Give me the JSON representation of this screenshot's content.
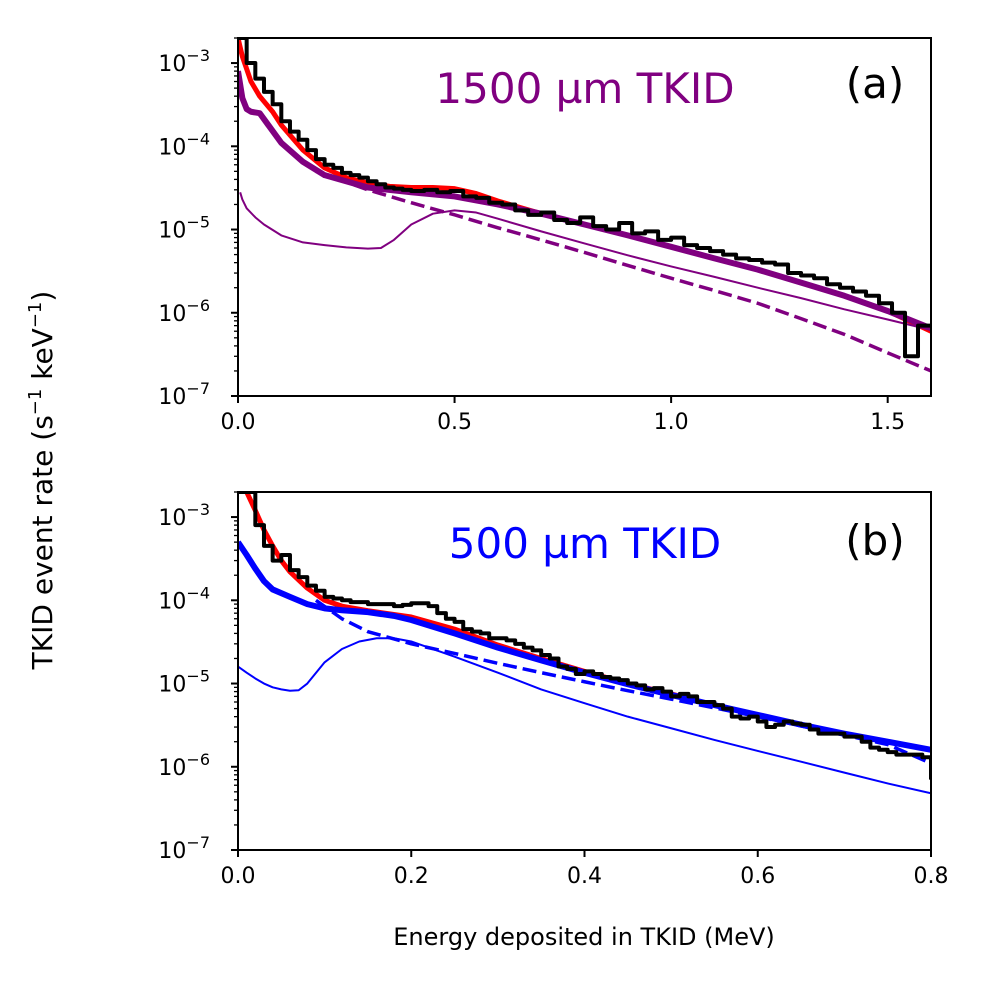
{
  "ylabel": "TKID event rate (s⁻¹ keV⁻¹)",
  "ylabel_text": "TKID event rate (s",
  "ylabel_sup1": "−1",
  "ylabel_mid": " keV",
  "ylabel_sup2": "−1",
  "ylabel_end": ")",
  "ytick_base": "10",
  "chart_data": [
    {
      "type": "line",
      "panel": "a",
      "panel_label": "(a)",
      "annotation": "1500 µm TKID",
      "annotation_color": "#800080",
      "xlabel": "",
      "ylabel": "TKID event rate (s⁻¹ keV⁻¹)",
      "xlim": [
        0,
        1.6
      ],
      "ylim": [
        1e-07,
        0.002
      ],
      "yscale": "log",
      "xticks": [
        0,
        0.5,
        1.0,
        1.5
      ],
      "xticklabels": [
        "0.0",
        "0.5",
        "1.0",
        "1.5"
      ],
      "yticks": [
        1e-07,
        1e-06,
        1e-05,
        0.0001,
        0.001
      ],
      "ytick_exps": [
        "−7",
        "−6",
        "−5",
        "−4",
        "−3"
      ],
      "series": [
        {
          "name": "total model",
          "color": "#ff0000",
          "width": 5,
          "style": "solid",
          "x": [
            0.0,
            0.01,
            0.03,
            0.05,
            0.08,
            0.1,
            0.15,
            0.2,
            0.25,
            0.3,
            0.35,
            0.4,
            0.45,
            0.5,
            0.55,
            0.6,
            0.7,
            0.8,
            0.9,
            1.0,
            1.1,
            1.2,
            1.3,
            1.4,
            1.5,
            1.6
          ],
          "y": [
            0.002,
            0.0012,
            0.0006,
            0.0004,
            0.00026,
            0.00018,
            9e-05,
            5.5e-05,
            4.2e-05,
            3.6e-05,
            3.3e-05,
            3.2e-05,
            3.2e-05,
            3.1e-05,
            2.7e-05,
            2.2e-05,
            1.55e-05,
            1.15e-05,
            8.5e-06,
            6.2e-06,
            4.5e-06,
            3.3e-06,
            2.3e-06,
            1.6e-06,
            1.05e-06,
            6e-07
          ]
        },
        {
          "name": "data histogram",
          "color": "#000000",
          "width": 4,
          "style": "step",
          "edges": [
            0.0,
            0.02,
            0.04,
            0.06,
            0.08,
            0.1,
            0.12,
            0.14,
            0.16,
            0.18,
            0.2,
            0.22,
            0.24,
            0.26,
            0.28,
            0.3,
            0.32,
            0.34,
            0.36,
            0.38,
            0.4,
            0.43,
            0.46,
            0.49,
            0.52,
            0.55,
            0.58,
            0.61,
            0.64,
            0.67,
            0.7,
            0.73,
            0.76,
            0.79,
            0.82,
            0.85,
            0.88,
            0.91,
            0.94,
            0.97,
            1.0,
            1.03,
            1.06,
            1.09,
            1.12,
            1.15,
            1.18,
            1.21,
            1.24,
            1.27,
            1.3,
            1.33,
            1.36,
            1.39,
            1.42,
            1.45,
            1.48,
            1.51,
            1.54,
            1.57,
            1.6
          ],
          "values": [
            0.002,
            0.001,
            0.00065,
            0.00045,
            0.00032,
            0.0002,
            0.00015,
            0.00012,
            9e-05,
            7e-05,
            6e-05,
            5.5e-05,
            4.8e-05,
            4.5e-05,
            4.2e-05,
            3.8e-05,
            3.5e-05,
            3.2e-05,
            3.1e-05,
            3e-05,
            2.9e-05,
            3e-05,
            2.8e-05,
            2.9e-05,
            2.5e-05,
            2.4e-05,
            2.1e-05,
            2e-05,
            1.7e-05,
            1.5e-05,
            1.6e-05,
            1.3e-05,
            1.2e-05,
            1.4e-05,
            1.1e-05,
            1e-05,
            1.2e-05,
            9e-06,
            9.5e-06,
            7.5e-06,
            8e-06,
            6.5e-06,
            6e-06,
            5.5e-06,
            5e-06,
            4.5e-06,
            4.3e-06,
            4e-06,
            3.8e-06,
            3e-06,
            2.8e-06,
            2.6e-06,
            2.2e-06,
            2e-06,
            1.8e-06,
            1.6e-06,
            1.3e-06,
            1e-06,
            3e-07,
            7e-07
          ]
        },
        {
          "name": "total simulation",
          "color": "#800080",
          "width": 6,
          "style": "solid",
          "x": [
            0.0,
            0.01,
            0.02,
            0.03,
            0.05,
            0.07,
            0.1,
            0.15,
            0.2,
            0.3,
            0.4,
            0.5,
            0.6,
            0.7,
            0.8,
            0.9,
            1.0,
            1.1,
            1.2,
            1.3,
            1.4,
            1.5,
            1.6
          ],
          "y": [
            0.0008,
            0.00038,
            0.00028,
            0.00026,
            0.00025,
            0.00018,
            0.00011,
            6.5e-05,
            4.5e-05,
            3.2e-05,
            2.8e-05,
            2.5e-05,
            2e-05,
            1.55e-05,
            1.15e-05,
            8.5e-06,
            6.2e-06,
            4.5e-06,
            3.3e-06,
            2.3e-06,
            1.6e-06,
            1.05e-06,
            6.5e-07
          ]
        },
        {
          "name": "component dashed",
          "color": "#800080",
          "width": 3.5,
          "style": "dashed",
          "x": [
            0.18,
            0.3,
            0.4,
            0.5,
            0.6,
            0.7,
            0.8,
            0.9,
            1.0,
            1.1,
            1.2,
            1.3,
            1.4,
            1.5,
            1.6
          ],
          "y": [
            5e-05,
            3e-05,
            2.1e-05,
            1.5e-05,
            1.05e-05,
            7.5e-06,
            5.3e-06,
            3.7e-06,
            2.6e-06,
            1.85e-06,
            1.3e-06,
            8.5e-07,
            5.5e-07,
            3.3e-07,
            2e-07
          ]
        },
        {
          "name": "component thin",
          "color": "#800080",
          "width": 2,
          "style": "solid",
          "x": [
            0.005,
            0.01,
            0.02,
            0.04,
            0.06,
            0.1,
            0.15,
            0.2,
            0.25,
            0.3,
            0.33,
            0.36,
            0.4,
            0.45,
            0.5,
            0.55,
            0.6,
            0.7,
            0.8,
            0.9,
            1.0,
            1.1,
            1.2,
            1.3,
            1.4,
            1.5,
            1.6
          ],
          "y": [
            2.8e-05,
            2.3e-05,
            1.8e-05,
            1.4e-05,
            1.15e-05,
            8.5e-06,
            7e-06,
            6.5e-06,
            6.1e-06,
            5.9e-06,
            6e-06,
            7.5e-06,
            1.15e-05,
            1.55e-05,
            1.7e-05,
            1.6e-05,
            1.35e-05,
            9.5e-06,
            6.8e-06,
            4.9e-06,
            3.6e-06,
            2.7e-06,
            2e-06,
            1.5e-06,
            1.1e-06,
            8.3e-07,
            6.2e-07
          ]
        }
      ]
    },
    {
      "type": "line",
      "panel": "b",
      "panel_label": "(b)",
      "annotation": "500 µm TKID",
      "annotation_color": "#0000ff",
      "xlabel": "Energy deposited in TKID (MeV)",
      "ylabel": "TKID event rate (s⁻¹ keV⁻¹)",
      "xlim": [
        0,
        0.8
      ],
      "ylim": [
        1e-07,
        0.002
      ],
      "yscale": "log",
      "xticks": [
        0,
        0.2,
        0.4,
        0.6,
        0.8
      ],
      "xticklabels": [
        "0.0",
        "0.2",
        "0.4",
        "0.6",
        "0.8"
      ],
      "yticks": [
        1e-07,
        1e-06,
        1e-05,
        0.0001,
        0.001
      ],
      "ytick_exps": [
        "−7",
        "−6",
        "−5",
        "−4",
        "−3"
      ],
      "series": [
        {
          "name": "total model",
          "color": "#ff0000",
          "width": 5,
          "style": "solid",
          "x": [
            0.01,
            0.02,
            0.03,
            0.04,
            0.05,
            0.06,
            0.08,
            0.1,
            0.12,
            0.15,
            0.2,
            0.25,
            0.3,
            0.35,
            0.4,
            0.45,
            0.5,
            0.55,
            0.6,
            0.65,
            0.7,
            0.75,
            0.8
          ],
          "y": [
            0.002,
            0.0012,
            0.0007,
            0.00045,
            0.0003,
            0.00022,
            0.00014,
            0.0001,
            8.5e-05,
            7.5e-05,
            6.3e-05,
            4.5e-05,
            2.9e-05,
            2e-05,
            1.4e-05,
            1e-05,
            7.5e-06,
            5.5e-06,
            4.2e-06,
            3.2e-06,
            2.5e-06,
            2e-06,
            1.6e-06
          ]
        },
        {
          "name": "data histogram",
          "color": "#000000",
          "width": 4,
          "style": "step",
          "edges": [
            0.0,
            0.02,
            0.03,
            0.04,
            0.05,
            0.06,
            0.07,
            0.08,
            0.09,
            0.1,
            0.11,
            0.12,
            0.13,
            0.14,
            0.15,
            0.16,
            0.17,
            0.18,
            0.19,
            0.2,
            0.21,
            0.22,
            0.23,
            0.24,
            0.25,
            0.26,
            0.27,
            0.28,
            0.29,
            0.3,
            0.31,
            0.32,
            0.33,
            0.34,
            0.35,
            0.36,
            0.37,
            0.38,
            0.39,
            0.4,
            0.41,
            0.42,
            0.43,
            0.44,
            0.45,
            0.46,
            0.47,
            0.48,
            0.49,
            0.5,
            0.51,
            0.52,
            0.53,
            0.54,
            0.55,
            0.56,
            0.57,
            0.58,
            0.59,
            0.6,
            0.61,
            0.62,
            0.63,
            0.64,
            0.65,
            0.66,
            0.67,
            0.68,
            0.69,
            0.7,
            0.71,
            0.72,
            0.73,
            0.74,
            0.75,
            0.76,
            0.77,
            0.78,
            0.79,
            0.8
          ],
          "values": [
            0.002,
            0.0008,
            0.00045,
            0.0003,
            0.00035,
            0.00023,
            0.00019,
            0.00015,
            0.00013,
            0.00011,
            0.000105,
            0.0001,
            9.5e-05,
            9.5e-05,
            9e-05,
            9e-05,
            9e-05,
            8.5e-05,
            8.8e-05,
            9.2e-05,
            9.2e-05,
            8.5e-05,
            7e-05,
            6e-05,
            5.5e-05,
            4.5e-05,
            4.2e-05,
            4e-05,
            3.5e-05,
            3.5e-05,
            3.3e-05,
            3e-05,
            2.7e-05,
            2.5e-05,
            2.2e-05,
            2e-05,
            1.6e-05,
            1.5e-05,
            1.3e-05,
            1.4e-05,
            1.3e-05,
            1.2e-05,
            1.15e-05,
            1.1e-05,
            1e-05,
            9.5e-06,
            8.5e-06,
            8.8e-06,
            8e-06,
            7e-06,
            7.5e-06,
            7e-06,
            6e-06,
            6e-06,
            5.5e-06,
            5e-06,
            4e-06,
            3.8e-06,
            4e-06,
            3.5e-06,
            3e-06,
            3.2e-06,
            3.5e-06,
            3.3e-06,
            3.2e-06,
            2.8e-06,
            2.5e-06,
            2.5e-06,
            2.5e-06,
            2.3e-06,
            2.3e-06,
            2e-06,
            1.7e-06,
            1.6e-06,
            1.5e-06,
            1.4e-06,
            1.4e-06,
            1.4e-06,
            1.3e-06,
            7e-07
          ]
        },
        {
          "name": "total simulation",
          "color": "#0000ff",
          "width": 6,
          "style": "solid",
          "x": [
            0.0,
            0.01,
            0.02,
            0.03,
            0.04,
            0.06,
            0.08,
            0.1,
            0.12,
            0.15,
            0.18,
            0.2,
            0.25,
            0.3,
            0.35,
            0.4,
            0.45,
            0.5,
            0.55,
            0.6,
            0.65,
            0.7,
            0.75,
            0.8
          ],
          "y": [
            0.0005,
            0.00035,
            0.00024,
            0.00017,
            0.000135,
            0.00011,
            9e-05,
            8e-05,
            7.6e-05,
            7.2e-05,
            6.5e-05,
            5.8e-05,
            4e-05,
            2.7e-05,
            1.9e-05,
            1.35e-05,
            9.8e-06,
            7.3e-06,
            5.5e-06,
            4.2e-06,
            3.2e-06,
            2.5e-06,
            2e-06,
            1.6e-06
          ]
        },
        {
          "name": "component dashed",
          "color": "#0000ff",
          "width": 3.5,
          "style": "dashed",
          "x": [
            0.09,
            0.12,
            0.15,
            0.2,
            0.25,
            0.3,
            0.35,
            0.4,
            0.45,
            0.5,
            0.55,
            0.6,
            0.65,
            0.7,
            0.75,
            0.8
          ],
          "y": [
            0.0001,
            6e-05,
            4.2e-05,
            3e-05,
            2.3e-05,
            1.75e-05,
            1.35e-05,
            1.05e-05,
            8.2e-06,
            6.5e-06,
            5.1e-06,
            4e-06,
            3.1e-06,
            2.4e-06,
            1.85e-06,
            1.1e-06
          ]
        },
        {
          "name": "component thin",
          "color": "#0000ff",
          "width": 2,
          "style": "solid",
          "x": [
            0.0,
            0.01,
            0.02,
            0.03,
            0.04,
            0.05,
            0.06,
            0.07,
            0.08,
            0.1,
            0.12,
            0.14,
            0.16,
            0.18,
            0.2,
            0.25,
            0.3,
            0.35,
            0.4,
            0.45,
            0.5,
            0.55,
            0.6,
            0.65,
            0.7,
            0.75,
            0.8
          ],
          "y": [
            1.6e-05,
            1.35e-05,
            1.15e-05,
            1e-05,
            9e-06,
            8.5e-06,
            8.2e-06,
            8.3e-06,
            1e-05,
            1.8e-05,
            2.6e-05,
            3.2e-05,
            3.5e-05,
            3.5e-05,
            3.2e-05,
            2.1e-05,
            1.35e-05,
            8.5e-06,
            5.8e-06,
            4e-06,
            2.9e-06,
            2.1e-06,
            1.55e-06,
            1.15e-06,
            8.5e-07,
            6.3e-07,
            4.8e-07
          ]
        }
      ]
    }
  ]
}
